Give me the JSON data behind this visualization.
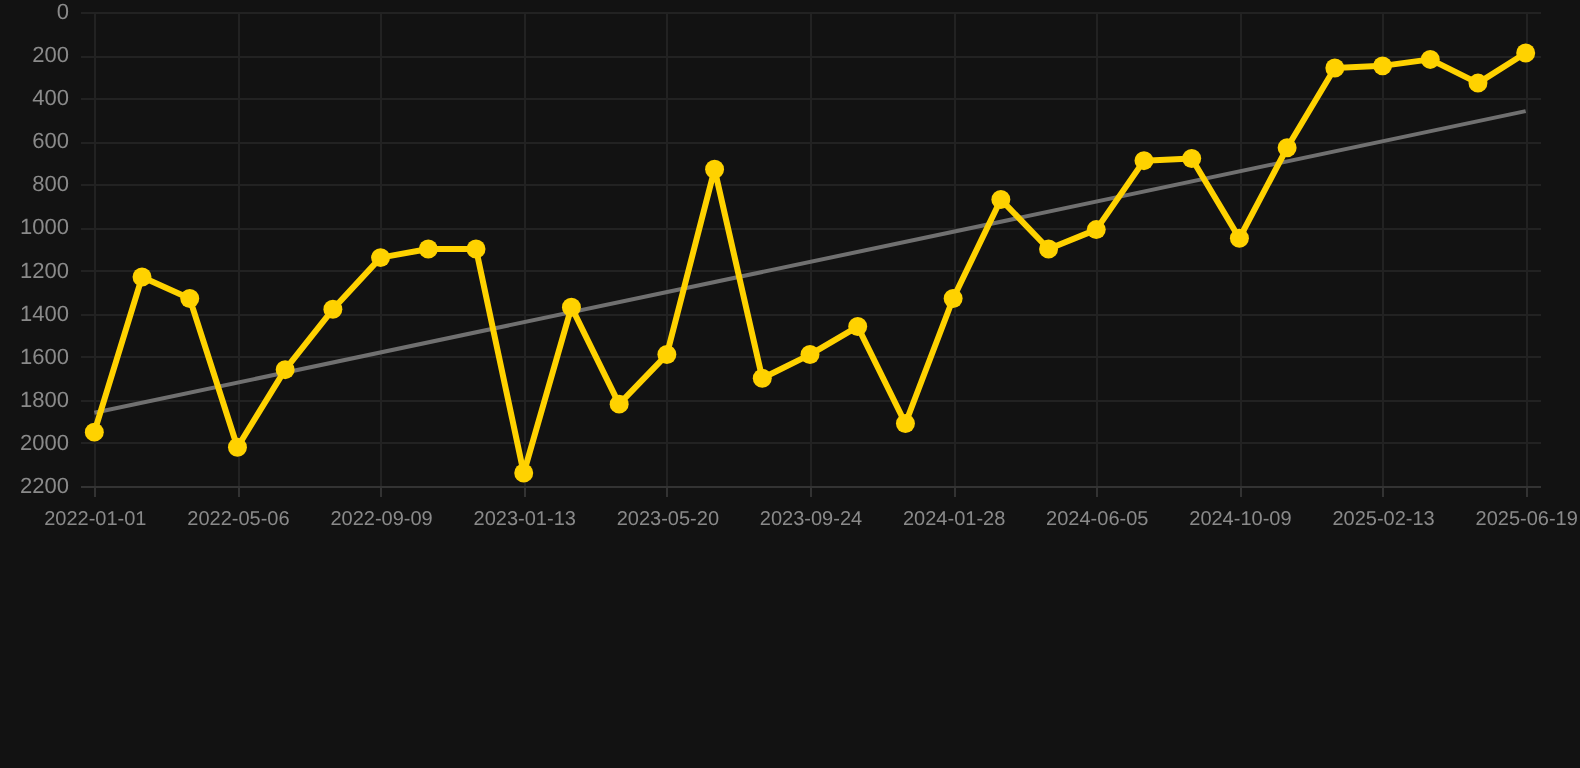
{
  "chart_data": {
    "type": "line",
    "categories": [
      "2022-01-01",
      null,
      null,
      "2022-05-06",
      null,
      null,
      "2022-09-09",
      null,
      null,
      "2023-01-13",
      null,
      null,
      "2023-05-20",
      null,
      null,
      "2023-09-24",
      null,
      null,
      "2024-01-28",
      null,
      null,
      "2024-06-05",
      null,
      null,
      "2024-10-09",
      null,
      null,
      "2025-02-13",
      null,
      null,
      "2025-06-19"
    ],
    "series": [
      {
        "color": "#ffd200",
        "values": [
          1950,
          1230,
          1330,
          2020,
          1660,
          1380,
          1140,
          1100,
          1100,
          2140,
          1370,
          1820,
          1590,
          730,
          1700,
          1590,
          1460,
          1910,
          1330,
          870,
          1100,
          1010,
          690,
          680,
          1050,
          630,
          260,
          250,
          220,
          330,
          190
        ]
      },
      {
        "type": "line",
        "color": "#707070",
        "marker": "none",
        "values": [
          1860,
          null,
          null,
          null,
          null,
          null,
          null,
          null,
          null,
          null,
          null,
          null,
          null,
          null,
          null,
          null,
          null,
          null,
          null,
          null,
          null,
          null,
          null,
          null,
          null,
          null,
          null,
          null,
          null,
          null,
          460
        ]
      }
    ],
    "ylim": [
      2200,
      0
    ],
    "yticks": [
      0,
      200,
      400,
      600,
      800,
      1000,
      1200,
      1400,
      1600,
      1800,
      2000,
      2200
    ],
    "grid": true,
    "marker": "circle",
    "line_style": "solid"
  }
}
